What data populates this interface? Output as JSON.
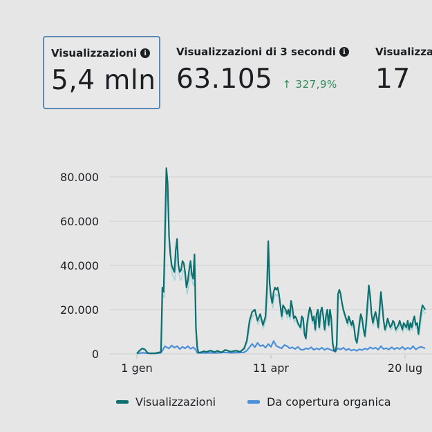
{
  "metrics": [
    {
      "label": "Visualizzazioni",
      "value": "5,4 mln",
      "selected": true
    },
    {
      "label": "Visualizzazioni di 3 secondi",
      "value": "63.105",
      "delta": "327,9%"
    },
    {
      "label": "Visualizza",
      "value": "17"
    }
  ],
  "chart_data": {
    "type": "line",
    "title": "",
    "xlabel": "",
    "ylabel": "",
    "ylim": [
      0,
      80000
    ],
    "yticks": [
      "80.000",
      "60.000",
      "40.000",
      "20.000",
      "0"
    ],
    "ytick_values": [
      80000,
      60000,
      40000,
      20000,
      0
    ],
    "xticks": [
      "1 gen",
      "11 apr",
      "20 lug"
    ],
    "xtick_days": [
      0,
      100,
      200
    ],
    "grid": true,
    "legend_position": "bottom",
    "series": [
      {
        "name": "Visualizzazioni",
        "color": "#0f6e6e",
        "points": [
          [
            0,
            200
          ],
          [
            2,
            1500
          ],
          [
            4,
            2500
          ],
          [
            6,
            2000
          ],
          [
            8,
            500
          ],
          [
            10,
            200
          ],
          [
            14,
            300
          ],
          [
            16,
            600
          ],
          [
            18,
            900
          ],
          [
            19,
            30000
          ],
          [
            20,
            28000
          ],
          [
            21,
            55000
          ],
          [
            22,
            84000
          ],
          [
            23,
            77000
          ],
          [
            24,
            53000
          ],
          [
            25,
            45000
          ],
          [
            26,
            40000
          ],
          [
            28,
            37000
          ],
          [
            29,
            47000
          ],
          [
            30,
            52000
          ],
          [
            31,
            40000
          ],
          [
            32,
            37000
          ],
          [
            33,
            38000
          ],
          [
            34,
            42000
          ],
          [
            35,
            41000
          ],
          [
            36,
            37000
          ],
          [
            37,
            30000
          ],
          [
            38,
            33000
          ],
          [
            39,
            38000
          ],
          [
            40,
            42000
          ],
          [
            41,
            36000
          ],
          [
            42,
            34000
          ],
          [
            43,
            45000
          ],
          [
            44,
            12000
          ],
          [
            45,
            3000
          ],
          [
            46,
            500
          ],
          [
            48,
            800
          ],
          [
            50,
            1200
          ],
          [
            52,
            900
          ],
          [
            55,
            1500
          ],
          [
            58,
            800
          ],
          [
            60,
            1400
          ],
          [
            63,
            700
          ],
          [
            66,
            1800
          ],
          [
            70,
            1000
          ],
          [
            74,
            1500
          ],
          [
            77,
            900
          ],
          [
            80,
            2500
          ],
          [
            82,
            6000
          ],
          [
            84,
            15000
          ],
          [
            86,
            19000
          ],
          [
            88,
            20000
          ],
          [
            90,
            15000
          ],
          [
            92,
            18000
          ],
          [
            94,
            13000
          ],
          [
            96,
            17000
          ],
          [
            97,
            30000
          ],
          [
            98,
            51000
          ],
          [
            99,
            32000
          ],
          [
            100,
            26000
          ],
          [
            101,
            23000
          ],
          [
            102,
            28000
          ],
          [
            103,
            30000
          ],
          [
            104,
            29000
          ],
          [
            105,
            30000
          ],
          [
            106,
            27000
          ],
          [
            107,
            22000
          ],
          [
            108,
            17000
          ],
          [
            109,
            22000
          ],
          [
            110,
            21000
          ],
          [
            111,
            20000
          ],
          [
            112,
            18000
          ],
          [
            113,
            20000
          ],
          [
            114,
            17000
          ],
          [
            115,
            24000
          ],
          [
            116,
            21000
          ],
          [
            117,
            16000
          ],
          [
            118,
            17000
          ],
          [
            119,
            16000
          ],
          [
            120,
            14000
          ],
          [
            121,
            13000
          ],
          [
            122,
            12000
          ],
          [
            123,
            17000
          ],
          [
            124,
            16000
          ],
          [
            125,
            9000
          ],
          [
            126,
            7000
          ],
          [
            127,
            14000
          ],
          [
            128,
            18000
          ],
          [
            129,
            21000
          ],
          [
            130,
            19000
          ],
          [
            131,
            15000
          ],
          [
            132,
            17000
          ],
          [
            133,
            11000
          ],
          [
            134,
            18000
          ],
          [
            135,
            20000
          ],
          [
            136,
            12000
          ],
          [
            137,
            19000
          ],
          [
            138,
            21000
          ],
          [
            139,
            17000
          ],
          [
            140,
            11000
          ],
          [
            141,
            17000
          ],
          [
            142,
            20000
          ],
          [
            143,
            13000
          ],
          [
            144,
            20000
          ],
          [
            145,
            16000
          ],
          [
            146,
            5000
          ],
          [
            147,
            1500
          ],
          [
            148,
            1000
          ],
          [
            149,
            4000
          ],
          [
            150,
            27000
          ],
          [
            151,
            29000
          ],
          [
            152,
            27000
          ],
          [
            153,
            23000
          ],
          [
            154,
            20000
          ],
          [
            155,
            18000
          ],
          [
            156,
            16000
          ],
          [
            157,
            14000
          ],
          [
            158,
            17000
          ],
          [
            159,
            15000
          ],
          [
            160,
            13000
          ],
          [
            161,
            15000
          ],
          [
            162,
            12000
          ],
          [
            163,
            7000
          ],
          [
            164,
            5000
          ],
          [
            165,
            9000
          ],
          [
            166,
            14000
          ],
          [
            167,
            18000
          ],
          [
            168,
            16000
          ],
          [
            169,
            11000
          ],
          [
            170,
            8000
          ],
          [
            171,
            14000
          ],
          [
            172,
            23000
          ],
          [
            173,
            31000
          ],
          [
            174,
            26000
          ],
          [
            175,
            18000
          ],
          [
            176,
            14000
          ],
          [
            177,
            17000
          ],
          [
            178,
            19000
          ],
          [
            179,
            16000
          ],
          [
            180,
            12000
          ],
          [
            181,
            20000
          ],
          [
            182,
            28000
          ],
          [
            183,
            22000
          ],
          [
            184,
            15000
          ],
          [
            185,
            11000
          ],
          [
            186,
            13000
          ],
          [
            187,
            16000
          ],
          [
            188,
            14000
          ],
          [
            189,
            12000
          ],
          [
            190,
            13000
          ],
          [
            191,
            15000
          ],
          [
            192,
            14000
          ],
          [
            193,
            11000
          ],
          [
            194,
            12000
          ],
          [
            195,
            13000
          ],
          [
            196,
            15000
          ],
          [
            197,
            13000
          ],
          [
            198,
            11000
          ],
          [
            199,
            14000
          ],
          [
            200,
            13000
          ],
          [
            201,
            12000
          ],
          [
            202,
            15000
          ],
          [
            203,
            11000
          ],
          [
            204,
            14000
          ],
          [
            205,
            12000
          ],
          [
            206,
            15000
          ],
          [
            207,
            17000
          ],
          [
            208,
            13000
          ],
          [
            209,
            14000
          ],
          [
            210,
            9000
          ],
          [
            211,
            14000
          ],
          [
            212,
            19000
          ],
          [
            213,
            22000
          ],
          [
            214,
            21000
          ],
          [
            215,
            20000
          ]
        ]
      },
      {
        "name": "Da copertura organica",
        "color": "#4a90d9",
        "points": [
          [
            0,
            100
          ],
          [
            4,
            500
          ],
          [
            8,
            300
          ],
          [
            12,
            200
          ],
          [
            16,
            300
          ],
          [
            18,
            500
          ],
          [
            19,
            1500
          ],
          [
            20,
            2500
          ],
          [
            21,
            3500
          ],
          [
            22,
            3000
          ],
          [
            24,
            2500
          ],
          [
            26,
            3800
          ],
          [
            28,
            2800
          ],
          [
            30,
            3500
          ],
          [
            32,
            2200
          ],
          [
            34,
            3200
          ],
          [
            36,
            2500
          ],
          [
            38,
            3500
          ],
          [
            40,
            2300
          ],
          [
            42,
            3000
          ],
          [
            44,
            1800
          ],
          [
            45,
            500
          ],
          [
            50,
            400
          ],
          [
            55,
            500
          ],
          [
            60,
            400
          ],
          [
            65,
            700
          ],
          [
            70,
            500
          ],
          [
            75,
            600
          ],
          [
            80,
            700
          ],
          [
            82,
            1500
          ],
          [
            84,
            3000
          ],
          [
            86,
            4500
          ],
          [
            88,
            3000
          ],
          [
            90,
            5000
          ],
          [
            92,
            3500
          ],
          [
            94,
            4000
          ],
          [
            96,
            2800
          ],
          [
            98,
            4500
          ],
          [
            100,
            3200
          ],
          [
            102,
            5800
          ],
          [
            104,
            3600
          ],
          [
            106,
            3000
          ],
          [
            108,
            2500
          ],
          [
            110,
            4000
          ],
          [
            112,
            3500
          ],
          [
            114,
            2500
          ],
          [
            116,
            3000
          ],
          [
            118,
            2200
          ],
          [
            120,
            3200
          ],
          [
            122,
            2000
          ],
          [
            124,
            1800
          ],
          [
            126,
            2500
          ],
          [
            128,
            2200
          ],
          [
            130,
            3000
          ],
          [
            132,
            1800
          ],
          [
            134,
            2500
          ],
          [
            136,
            2000
          ],
          [
            138,
            2800
          ],
          [
            140,
            1800
          ],
          [
            142,
            2500
          ],
          [
            144,
            2000
          ],
          [
            146,
            1500
          ],
          [
            148,
            1200
          ],
          [
            150,
            2500
          ],
          [
            152,
            2000
          ],
          [
            154,
            2800
          ],
          [
            156,
            1700
          ],
          [
            158,
            2300
          ],
          [
            160,
            1500
          ],
          [
            162,
            2000
          ],
          [
            164,
            1400
          ],
          [
            166,
            2100
          ],
          [
            168,
            1700
          ],
          [
            170,
            2400
          ],
          [
            172,
            2000
          ],
          [
            174,
            3000
          ],
          [
            176,
            2300
          ],
          [
            178,
            2800
          ],
          [
            180,
            1900
          ],
          [
            182,
            3500
          ],
          [
            184,
            2200
          ],
          [
            186,
            2600
          ],
          [
            188,
            2000
          ],
          [
            190,
            3000
          ],
          [
            192,
            2100
          ],
          [
            194,
            2800
          ],
          [
            196,
            2200
          ],
          [
            198,
            3200
          ],
          [
            200,
            2000
          ],
          [
            202,
            2800
          ],
          [
            204,
            2200
          ],
          [
            206,
            3500
          ],
          [
            208,
            2000
          ],
          [
            210,
            2800
          ],
          [
            212,
            3200
          ],
          [
            215,
            2500
          ]
        ]
      }
    ]
  }
}
